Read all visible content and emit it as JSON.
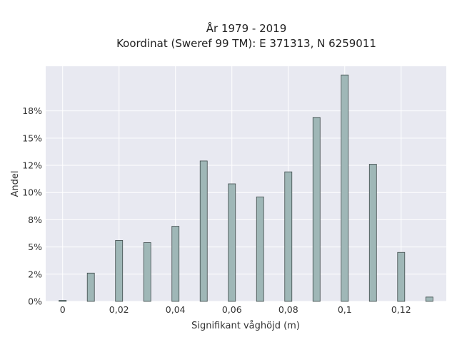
{
  "chart_data": {
    "type": "bar",
    "title": "År 1979 - 2019",
    "subtitle": "Koordinat (Sweref 99 TM): E 371313, N 6259011",
    "xlabel": "Signifikant våghöjd (m)",
    "ylabel": "Andel",
    "x": [
      0,
      0.01,
      0.02,
      0.03,
      0.04,
      0.05,
      0.06,
      0.07,
      0.08,
      0.09,
      0.1,
      0.11,
      0.12,
      0.13
    ],
    "values": [
      0.1,
      2.6,
      5.6,
      5.4,
      6.9,
      12.9,
      10.8,
      9.6,
      11.9,
      16.9,
      20.8,
      12.6,
      4.5,
      0.4
    ],
    "xlim": [
      -0.006,
      0.136
    ],
    "ylim": [
      0,
      21.6
    ],
    "xticks": [
      0,
      0.02,
      0.04,
      0.06,
      0.08,
      0.1,
      0.12
    ],
    "xtick_labels": [
      "0",
      "0,02",
      "0,04",
      "0,06",
      "0,08",
      "0,1",
      "0,12"
    ],
    "yticks": [
      0,
      2.5,
      5,
      7.5,
      10,
      12.5,
      15,
      17.5
    ],
    "ytick_labels": [
      "0%",
      "2%",
      "5%",
      "8%",
      "10%",
      "12%",
      "15%",
      "18%"
    ],
    "grid": true,
    "colors": {
      "plot_bg": "#e8e9f1",
      "grid": "#ffffff",
      "bar_fill": "#9fb7b7",
      "bar_stroke": "#3e4a4a"
    }
  }
}
